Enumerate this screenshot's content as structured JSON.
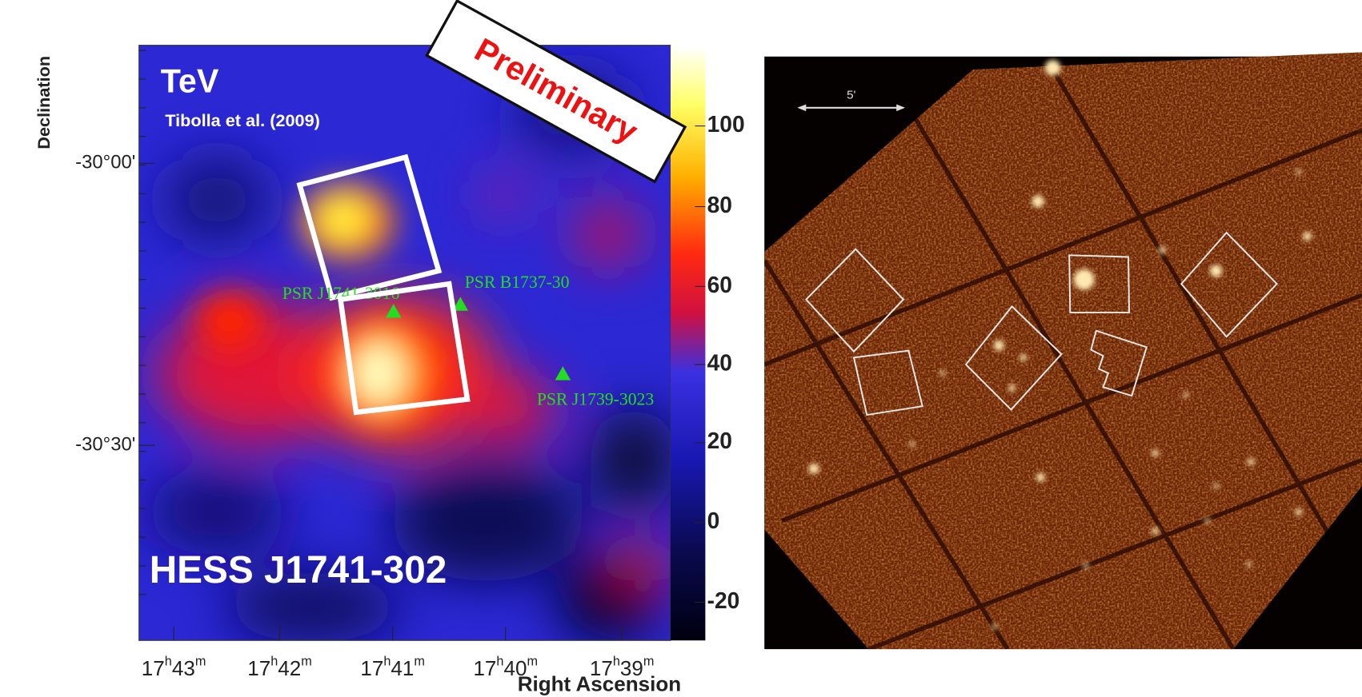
{
  "left_panel": {
    "badge": "Preliminary",
    "energy_label": "TeV",
    "citation": "Tibolla et al. (2009)",
    "source_name": "HESS J1741-302",
    "y_axis_title": "Declination",
    "y_tick_labels": [
      "-30°00'",
      "-30°30'"
    ],
    "x_axis_title": "Right Ascension",
    "x_tick_labels": [
      {
        "hour": "17",
        "hour_unit": "h",
        "minute": "43",
        "minute_unit": "m"
      },
      {
        "hour": "17",
        "hour_unit": "h",
        "minute": "42",
        "minute_unit": "m"
      },
      {
        "hour": "17",
        "hour_unit": "h",
        "minute": "41",
        "minute_unit": "m"
      },
      {
        "hour": "17",
        "hour_unit": "h",
        "minute": "40",
        "minute_unit": "m"
      },
      {
        "hour": "17",
        "hour_unit": "h",
        "minute": "39",
        "minute_unit": "m"
      }
    ],
    "colorbar_tick_labels": [
      "100",
      "80",
      "60",
      "40",
      "20",
      "0",
      "-20"
    ],
    "pulsars": [
      "PSR J1741-3016",
      "PSR B1737-30",
      "PSR J1739-3023"
    ]
  },
  "right_panel": {
    "scale_bar_label": "5'"
  }
}
